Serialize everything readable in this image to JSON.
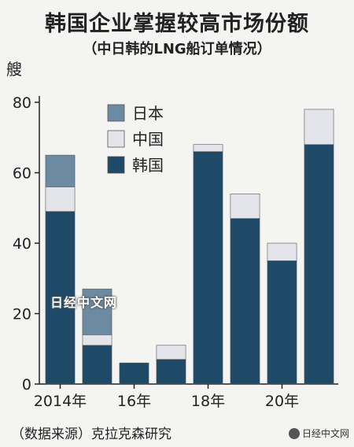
{
  "header": {
    "title": "韩国企业掌握较高市场份额",
    "subtitle": "（中日韩的LNG船订单情况）"
  },
  "footer": {
    "source": "（数据来源）克拉克森研究",
    "watermark": "日经中文网",
    "brand": "日经中文网"
  },
  "colors": {
    "japan": "#6d8aa3",
    "china": "#e4e5ea",
    "korea": "#1e4a68"
  },
  "chart_data": {
    "type": "bar",
    "stacked": true,
    "ylabel": "艘",
    "ylim": [
      0,
      80
    ],
    "yticks": [
      "0",
      "20",
      "40",
      "60",
      "80"
    ],
    "categories": [
      "2014年",
      "",
      "16年",
      "",
      "18年",
      "",
      "20年",
      ""
    ],
    "series": [
      {
        "name": "韩国",
        "color": "#1e4a68",
        "values": [
          49,
          11,
          6,
          7,
          66,
          47,
          35,
          68
        ]
      },
      {
        "name": "中国",
        "color": "#e4e5ea",
        "values": [
          7,
          3,
          0,
          4,
          2,
          7,
          5,
          10
        ]
      },
      {
        "name": "日本",
        "color": "#6d8aa3",
        "values": [
          9,
          13,
          0,
          0,
          0,
          0,
          0,
          0
        ]
      }
    ],
    "legend": {
      "position": "top-left",
      "items": [
        {
          "label": "日本",
          "color": "#6d8aa3"
        },
        {
          "label": "中国",
          "color": "#e4e5ea"
        },
        {
          "label": "韩国",
          "color": "#1e4a68"
        }
      ]
    }
  }
}
